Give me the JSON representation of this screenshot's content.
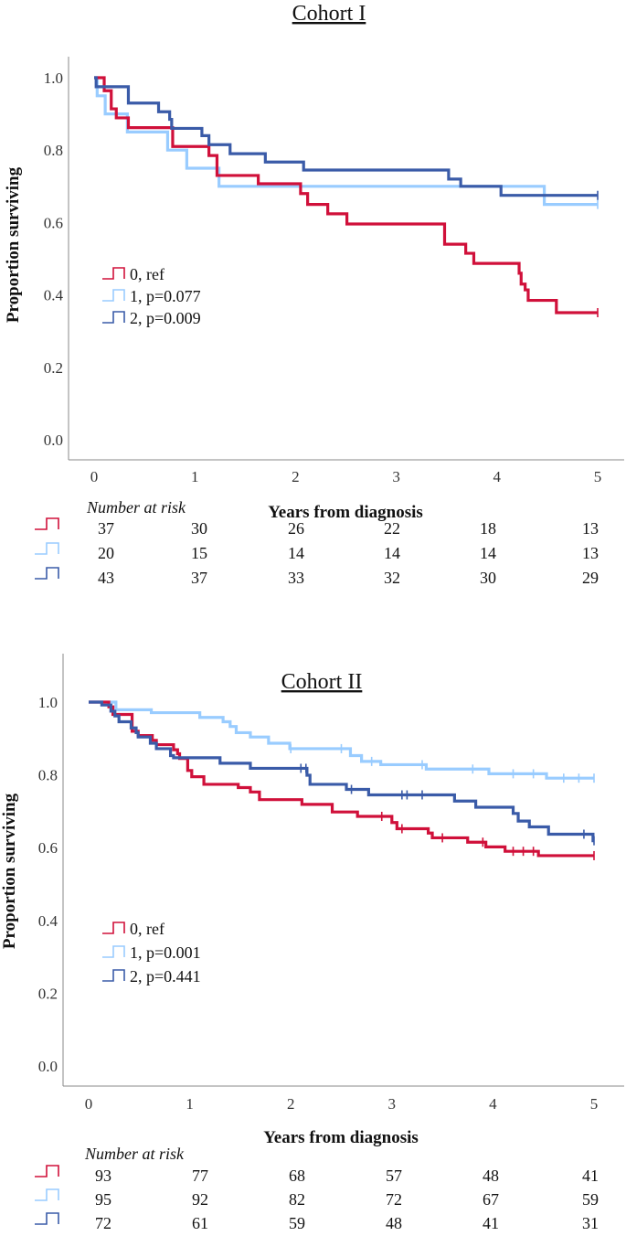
{
  "colors": {
    "0": "#d0103a",
    "1": "#99ccff",
    "2": "#3a5ba8"
  },
  "chart_data": [
    {
      "type": "line",
      "subtype": "kaplan-meier step",
      "title": "Cohort I",
      "xlabel": "Years from diagnosis",
      "ylabel": "Proportion surviving",
      "xlim": [
        0,
        5
      ],
      "ylim": [
        0,
        1
      ],
      "xticks": [
        "0",
        "1",
        "2",
        "3",
        "4",
        "5"
      ],
      "yticks": [
        "0.0",
        "0.2",
        "0.4",
        "0.6",
        "0.8",
        "1.0"
      ],
      "grid": false,
      "legend_position": "center-left",
      "series": [
        {
          "name": "0, ref",
          "key": "0",
          "censor": [
            5
          ],
          "steps": [
            [
              0,
              1
            ],
            [
              0.1,
              0.964
            ],
            [
              0.17,
              0.914
            ],
            [
              0.22,
              0.889
            ],
            [
              0.34,
              0.862
            ],
            [
              0.78,
              0.81
            ],
            [
              1.14,
              0.785
            ],
            [
              1.22,
              0.73
            ],
            [
              1.63,
              0.707
            ],
            [
              2.05,
              0.68
            ],
            [
              2.12,
              0.65
            ],
            [
              2.32,
              0.624
            ],
            [
              2.51,
              0.596
            ],
            [
              3.48,
              0.54
            ],
            [
              3.69,
              0.515
            ],
            [
              3.77,
              0.487
            ],
            [
              4.22,
              0.46
            ],
            [
              4.24,
              0.43
            ],
            [
              4.28,
              0.414
            ],
            [
              4.31,
              0.385
            ],
            [
              4.59,
              0.351
            ],
            [
              5,
              0.351
            ]
          ]
        },
        {
          "name": "1, p=0.077",
          "key": "1",
          "censor": [
            5
          ],
          "steps": [
            [
              0,
              1
            ],
            [
              0.03,
              0.95
            ],
            [
              0.11,
              0.9
            ],
            [
              0.33,
              0.85
            ],
            [
              0.73,
              0.8
            ],
            [
              0.92,
              0.75
            ],
            [
              1.24,
              0.7
            ],
            [
              4.47,
              0.65
            ],
            [
              5,
              0.65
            ]
          ]
        },
        {
          "name": "2, p=0.009",
          "key": "2",
          "censor": [
            5
          ],
          "steps": [
            [
              0,
              1
            ],
            [
              0.02,
              0.975
            ],
            [
              0.34,
              0.93
            ],
            [
              0.64,
              0.906
            ],
            [
              0.75,
              0.885
            ],
            [
              0.77,
              0.86
            ],
            [
              1.07,
              0.84
            ],
            [
              1.14,
              0.815
            ],
            [
              1.35,
              0.79
            ],
            [
              1.7,
              0.767
            ],
            [
              2.08,
              0.745
            ],
            [
              3.52,
              0.72
            ],
            [
              3.64,
              0.7
            ],
            [
              4.04,
              0.675
            ],
            [
              5,
              0.675
            ]
          ]
        }
      ],
      "number_at_risk": {
        "label": "Number at risk",
        "rows": [
          {
            "key": "0",
            "values": [
              37,
              30,
              26,
              22,
              18,
              13
            ]
          },
          {
            "key": "1",
            "values": [
              20,
              15,
              14,
              14,
              14,
              13
            ]
          },
          {
            "key": "2",
            "values": [
              43,
              37,
              33,
              32,
              30,
              29
            ]
          }
        ]
      }
    },
    {
      "type": "line",
      "subtype": "kaplan-meier step",
      "title": "Cohort II",
      "xlabel": "Years from diagnosis",
      "ylabel": "Proportion surviving",
      "xlim": [
        0,
        5
      ],
      "ylim": [
        0,
        1
      ],
      "xticks": [
        "0",
        "1",
        "2",
        "3",
        "4",
        "5"
      ],
      "yticks": [
        "0.0",
        "0.2",
        "0.4",
        "0.6",
        "0.8",
        "1.0"
      ],
      "grid": false,
      "legend_position": "center-left",
      "series": [
        {
          "name": "0, ref",
          "key": "0",
          "censor": [
            2.9,
            3.1,
            3.5,
            3.9,
            4.2,
            4.3,
            4.4,
            5
          ],
          "steps": [
            [
              0,
              1
            ],
            [
              0.2,
              0.987
            ],
            [
              0.24,
              0.966
            ],
            [
              0.43,
              0.92
            ],
            [
              0.49,
              0.908
            ],
            [
              0.63,
              0.895
            ],
            [
              0.67,
              0.883
            ],
            [
              0.84,
              0.869
            ],
            [
              0.88,
              0.858
            ],
            [
              0.9,
              0.845
            ],
            [
              0.98,
              0.812
            ],
            [
              1.02,
              0.795
            ],
            [
              1.14,
              0.774
            ],
            [
              1.48,
              0.765
            ],
            [
              1.6,
              0.753
            ],
            [
              1.69,
              0.732
            ],
            [
              2.11,
              0.719
            ],
            [
              2.41,
              0.698
            ],
            [
              2.66,
              0.686
            ],
            [
              3.0,
              0.669
            ],
            [
              3.05,
              0.652
            ],
            [
              3.36,
              0.64
            ],
            [
              3.4,
              0.627
            ],
            [
              3.75,
              0.615
            ],
            [
              3.93,
              0.602
            ],
            [
              4.12,
              0.59
            ],
            [
              4.45,
              0.578
            ],
            [
              5,
              0.578
            ]
          ]
        },
        {
          "name": "1, p=0.001",
          "key": "1",
          "censor": [
            2.0,
            2.5,
            2.8,
            3.3,
            3.8,
            4.2,
            4.4,
            4.7,
            4.85,
            5
          ],
          "steps": [
            [
              0,
              1
            ],
            [
              0.27,
              0.979
            ],
            [
              0.62,
              0.971
            ],
            [
              1.1,
              0.958
            ],
            [
              1.33,
              0.946
            ],
            [
              1.4,
              0.933
            ],
            [
              1.46,
              0.916
            ],
            [
              1.6,
              0.904
            ],
            [
              1.78,
              0.887
            ],
            [
              1.99,
              0.872
            ],
            [
              2.59,
              0.853
            ],
            [
              2.7,
              0.837
            ],
            [
              2.89,
              0.828
            ],
            [
              3.34,
              0.816
            ],
            [
              3.96,
              0.803
            ],
            [
              4.53,
              0.791
            ],
            [
              5,
              0.791
            ]
          ]
        },
        {
          "name": "2, p=0.441",
          "key": "2",
          "censor": [
            2.1,
            2.15,
            2.6,
            3.1,
            3.15,
            3.3,
            4.9,
            5
          ],
          "steps": [
            [
              0,
              1
            ],
            [
              0.13,
              0.992
            ],
            [
              0.22,
              0.975
            ],
            [
              0.26,
              0.962
            ],
            [
              0.3,
              0.946
            ],
            [
              0.42,
              0.929
            ],
            [
              0.47,
              0.916
            ],
            [
              0.49,
              0.904
            ],
            [
              0.61,
              0.887
            ],
            [
              0.67,
              0.872
            ],
            [
              0.81,
              0.853
            ],
            [
              0.84,
              0.847
            ],
            [
              1.3,
              0.832
            ],
            [
              1.6,
              0.818
            ],
            [
              2.16,
              0.799
            ],
            [
              2.19,
              0.774
            ],
            [
              2.55,
              0.76
            ],
            [
              2.77,
              0.745
            ],
            [
              3.62,
              0.728
            ],
            [
              3.83,
              0.711
            ],
            [
              4.2,
              0.694
            ],
            [
              4.25,
              0.673
            ],
            [
              4.36,
              0.657
            ],
            [
              4.55,
              0.637
            ],
            [
              4.99,
              0.619
            ],
            [
              5,
              0.619
            ]
          ]
        }
      ],
      "number_at_risk": {
        "label": "Number at risk",
        "rows": [
          {
            "key": "0",
            "values": [
              93,
              77,
              68,
              57,
              48,
              41
            ]
          },
          {
            "key": "1",
            "values": [
              95,
              92,
              82,
              72,
              67,
              59
            ]
          },
          {
            "key": "2",
            "values": [
              72,
              61,
              59,
              48,
              41,
              31
            ]
          }
        ]
      }
    }
  ]
}
